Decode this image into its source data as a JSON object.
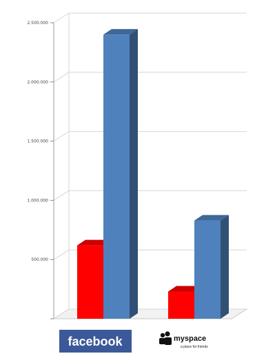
{
  "chart_data": {
    "type": "bar",
    "title": "",
    "xlabel": "",
    "ylabel": "",
    "ylim": [
      0,
      2500000
    ],
    "y_ticks": [
      "0",
      "500.000",
      "1.000.000",
      "1.500.000",
      "2.000.000",
      "2.500.000"
    ],
    "grid": true,
    "style": "3d",
    "categories": [
      "facebook",
      "myspace"
    ],
    "category_tagline": [
      "",
      "a place for friends"
    ],
    "series": [
      {
        "color": "#ff0000",
        "values": [
          620000,
          230000
        ]
      },
      {
        "color": "#4f81bd",
        "values": [
          2400000,
          830000
        ]
      }
    ]
  },
  "colors": {
    "facebook_brand": "#3b5998",
    "grid": "#d6d6d6",
    "floor": "#c8c8c8"
  }
}
